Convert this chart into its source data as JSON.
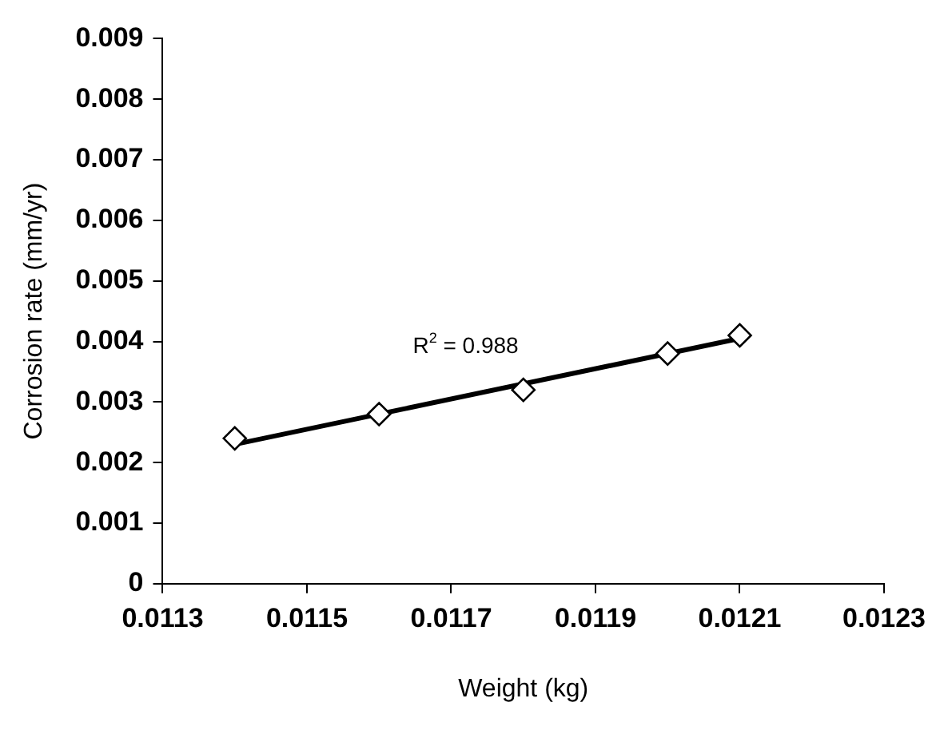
{
  "chart_data": {
    "type": "scatter",
    "xlabel": "Weight (kg)",
    "ylabel": "Corrosion rate (mm/yr)",
    "series": [
      {
        "type": "scatter",
        "color": "#000000",
        "marker": "diamond",
        "x": [
          0.0114,
          0.0116,
          0.0118,
          0.012,
          0.0121
        ],
        "values": [
          0.0024,
          0.0028,
          0.0032,
          0.0038,
          0.0041
        ]
      },
      {
        "type": "line",
        "color": "#000000",
        "marker": "none",
        "line_style": "solid",
        "x": [
          0.0114,
          0.0121
        ],
        "values": [
          0.0023,
          0.00405
        ]
      }
    ],
    "annotations": [
      "R$^{2}$ = 0.988"
    ],
    "xlim": [
      0.0113,
      0.0123
    ],
    "xticks": [
      0.0113,
      0.0115,
      0.0117,
      0.0119,
      0.0121,
      0.0123
    ],
    "ylim": [
      0,
      0.009
    ],
    "yticks": [
      0,
      0.001,
      0.002,
      0.003,
      0.004,
      0.005,
      0.006,
      0.007,
      0.008,
      0.009
    ],
    "grid": false,
    "legend": false
  }
}
